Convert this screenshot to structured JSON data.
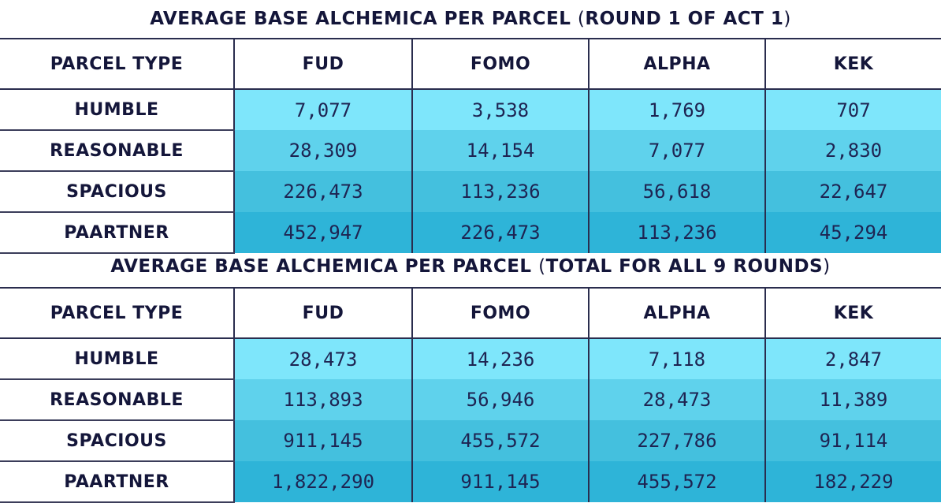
{
  "tables": [
    {
      "title_main": "AVERAGE BASE ALCHEMICA PER PARCEL ",
      "title_open": "(",
      "title_paren": "ROUND 1 OF ACT 1",
      "title_close": ")",
      "headers": [
        "PARCEL TYPE",
        "FUD",
        "FOMO",
        "ALPHA",
        "KEK"
      ],
      "rows": [
        {
          "type": "HUMBLE",
          "values": [
            "7,077",
            "3,538",
            "1,769",
            "707"
          ]
        },
        {
          "type": "REASONABLE",
          "values": [
            "28,309",
            "14,154",
            "7,077",
            "2,830"
          ]
        },
        {
          "type": "SPACIOUS",
          "values": [
            "226,473",
            "113,236",
            "56,618",
            "22,647"
          ]
        },
        {
          "type": "PAARTNER",
          "values": [
            "452,947",
            "226,473",
            "113,236",
            "45,294"
          ]
        }
      ]
    },
    {
      "title_main": "AVERAGE BASE ALCHEMICA PER PARCEL ",
      "title_open": "(",
      "title_paren": "TOTAL FOR ALL 9 ROUNDS",
      "title_close": ")",
      "headers": [
        "PARCEL TYPE",
        "FUD",
        "FOMO",
        "ALPHA",
        "KEK"
      ],
      "rows": [
        {
          "type": "HUMBLE",
          "values": [
            "28,473",
            "14,236",
            "7,118",
            "2,847"
          ]
        },
        {
          "type": "REASONABLE",
          "values": [
            "113,893",
            "56,946",
            "28,473",
            "11,389"
          ]
        },
        {
          "type": "SPACIOUS",
          "values": [
            "911,145",
            "455,572",
            "227,786",
            "91,114"
          ]
        },
        {
          "type": "PAARTNER",
          "values": [
            "1,822,290",
            "911,145",
            "455,572",
            "182,229"
          ]
        }
      ]
    }
  ],
  "colors": {
    "text": "#14163a",
    "row_1": "#7ee6fb",
    "row_2": "#5fd2ec",
    "row_3": "#44c0de",
    "row_4": "#2eb4d8"
  }
}
